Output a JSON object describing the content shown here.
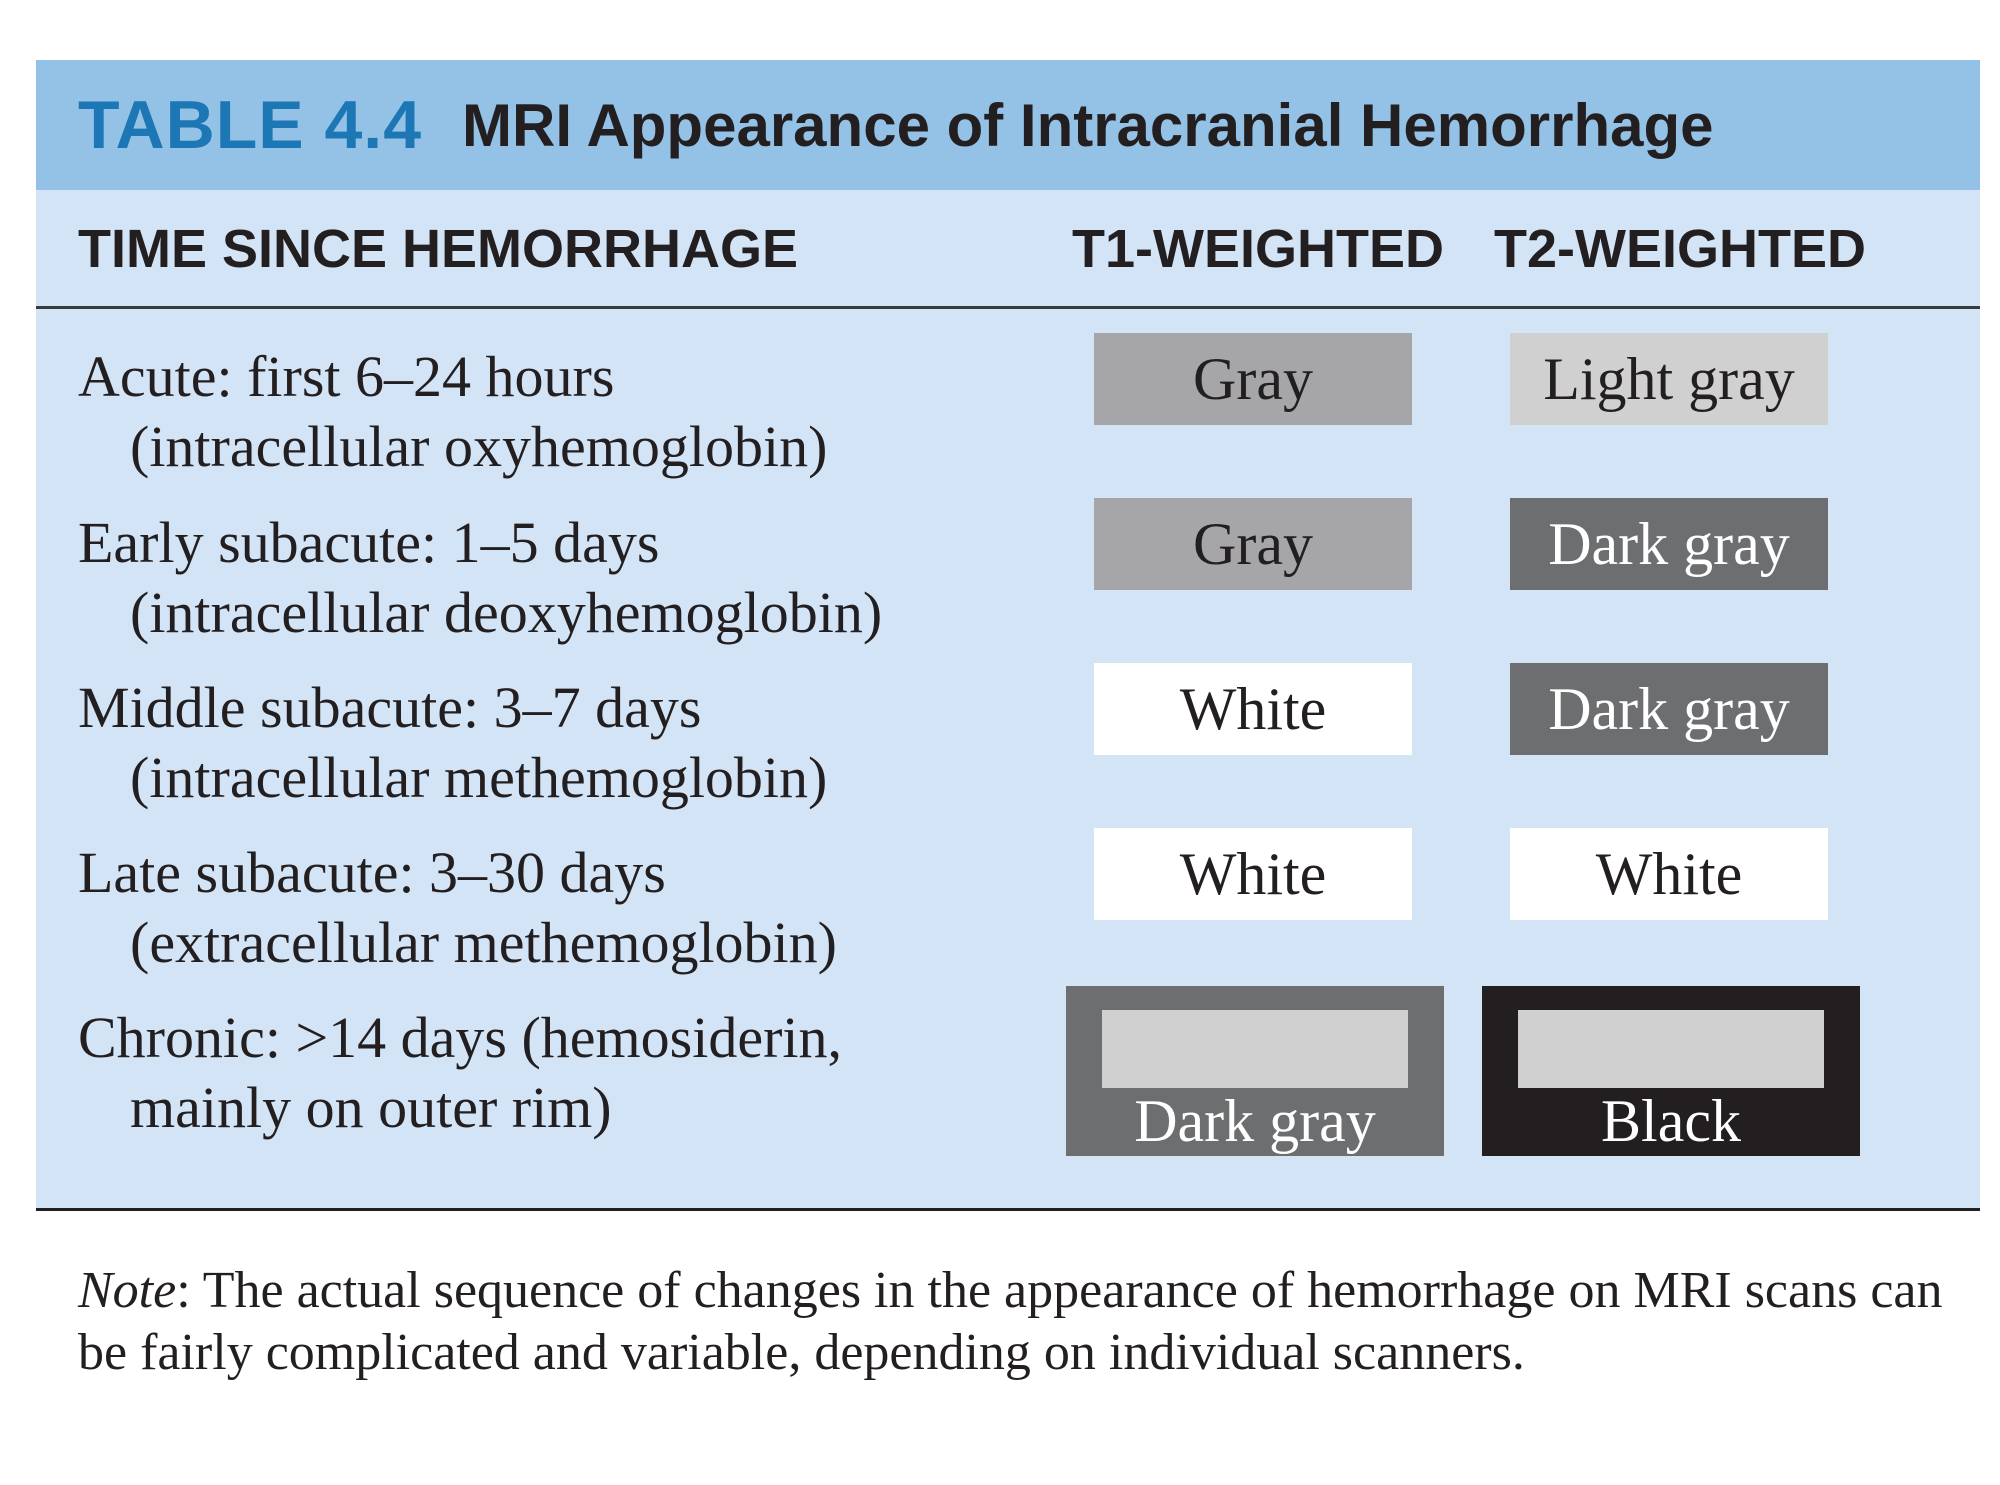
{
  "title": {
    "number": "TABLE 4.4",
    "text": "MRI Appearance of Intracranial Hemorrhage"
  },
  "headers": {
    "time": "TIME SINCE HEMORRHAGE",
    "t1": "T1-WEIGHTED",
    "t2": "T2-WEIGHTED"
  },
  "rows": [
    {
      "line1": "Acute: first 6–24 hours",
      "line2": "(intracellular oxyhemoglobin)",
      "t1": {
        "label": "Gray",
        "bg": "#a6a6a8",
        "fg": "#231f20"
      },
      "t2": {
        "label": "Light gray",
        "bg": "#d0d0d0",
        "fg": "#231f20"
      }
    },
    {
      "line1": "Early subacute:  1–5 days",
      "line2": "(intracellular deoxyhemoglobin)",
      "t1": {
        "label": "Gray",
        "bg": "#a6a6a8",
        "fg": "#231f20"
      },
      "t2": {
        "label": "Dark gray",
        "bg": "#6d6e70",
        "fg": "#ffffff"
      }
    },
    {
      "line1": "Middle subacute:  3–7 days",
      "line2": "(intracellular methemoglobin)",
      "t1": {
        "label": "White",
        "bg": "#ffffff",
        "fg": "#231f20"
      },
      "t2": {
        "label": "Dark gray",
        "bg": "#6d6e70",
        "fg": "#ffffff"
      }
    },
    {
      "line1": "Late subacute:  3–30 days",
      "line2": "(extracellular methemoglobin)",
      "t1": {
        "label": "White",
        "bg": "#ffffff",
        "fg": "#231f20"
      },
      "t2": {
        "label": "White",
        "bg": "#ffffff",
        "fg": "#231f20"
      }
    },
    {
      "line1": "Chronic: >14 days (hemosiderin,",
      "line2": "mainly on outer rim)",
      "t1": {
        "label": "Dark gray",
        "rim": "#6d6e70",
        "core": "#d0d0d0",
        "fg": "#ffffff"
      },
      "t2": {
        "label": "Black",
        "rim": "#231f20",
        "core": "#d0d0d0",
        "fg": "#ffffff"
      }
    }
  ],
  "note": {
    "label": "Note",
    "text": ": The actual sequence of changes in the appearance of hemorrhage on MRI scans can be fairly complicated and variable, depending on individual scanners."
  },
  "colors": {
    "title_bar": "#93c2e6",
    "table_number": "#1d77b5",
    "body_panel": "#d3e4f6"
  }
}
